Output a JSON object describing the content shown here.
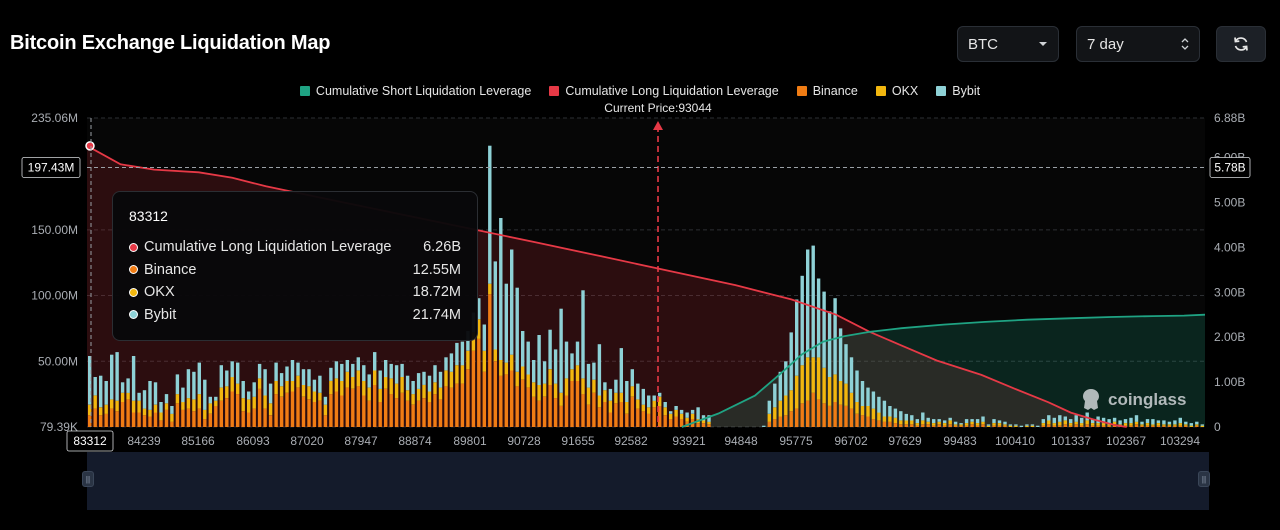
{
  "title": "Bitcoin Exchange Liquidation Map",
  "controls": {
    "coin": "BTC",
    "range": "7 day"
  },
  "legend": [
    {
      "label": "Cumulative Short Liquidation Leverage",
      "color": "#1fa383"
    },
    {
      "label": "Cumulative Long Liquidation Leverage",
      "color": "#e63946"
    },
    {
      "label": "Binance",
      "color": "#f07c14"
    },
    {
      "label": "OKX",
      "color": "#f2b70f"
    },
    {
      "label": "Bybit",
      "color": "#8ed1d6"
    }
  ],
  "current_price_label": "Current Price:93044",
  "tooltip": {
    "price": "83312",
    "rows": [
      {
        "name": "Cumulative Long Liquidation Leverage",
        "value": "6.26B",
        "color": "#e63946"
      },
      {
        "name": "Binance",
        "value": "12.55M",
        "color": "#f07c14"
      },
      {
        "name": "OKX",
        "value": "18.72M",
        "color": "#f2b70f"
      },
      {
        "name": "Bybit",
        "value": "21.74M",
        "color": "#8ed1d6"
      }
    ]
  },
  "watermark": "coinglass",
  "chart_data": {
    "type": "bar",
    "title": "Bitcoin Exchange Liquidation Map",
    "x_labels": [
      "83312",
      "84239",
      "85166",
      "86093",
      "87020",
      "87947",
      "88874",
      "89801",
      "90728",
      "91655",
      "92582",
      "93921",
      "94848",
      "95775",
      "96702",
      "97629",
      "99483",
      "100410",
      "101337",
      "102367",
      "103294"
    ],
    "current_price": 93044,
    "crosshair": {
      "x": "83312",
      "y_label": "197.43M",
      "y2_label": "5.78B",
      "y_value": 197.43
    },
    "y_left": {
      "ticks": [
        "235.06M",
        "150.00M",
        "100.00M",
        "50.00M",
        "79.39K"
      ],
      "tick_values": [
        235.06,
        150,
        100,
        50,
        0.079
      ],
      "max": 235.06
    },
    "y_right": {
      "ticks": [
        "6.88B",
        "6.00B",
        "5.00B",
        "4.00B",
        "3.00B",
        "2.00B",
        "1.00B",
        "0"
      ],
      "tick_values": [
        6.88,
        6,
        5,
        4,
        3,
        2,
        1,
        0
      ],
      "max": 6.88
    },
    "bars": [
      [
        9,
        8,
        37
      ],
      [
        14,
        10,
        14
      ],
      [
        9,
        6,
        24
      ],
      [
        10,
        7,
        18
      ],
      [
        14,
        7,
        34
      ],
      [
        12,
        8,
        37
      ],
      [
        19,
        7,
        8
      ],
      [
        21,
        5,
        11
      ],
      [
        11,
        9,
        34
      ],
      [
        11,
        9,
        6
      ],
      [
        9,
        5,
        14
      ],
      [
        8,
        5,
        22
      ],
      [
        11,
        6,
        17
      ],
      [
        5,
        6,
        8
      ],
      [
        13,
        5,
        7
      ],
      [
        4,
        6,
        6
      ],
      [
        18,
        7,
        15
      ],
      [
        13,
        6,
        11
      ],
      [
        14,
        8,
        22
      ],
      [
        12,
        9,
        21
      ],
      [
        14,
        11,
        24
      ],
      [
        6,
        7,
        23
      ],
      [
        10,
        8,
        5
      ],
      [
        16,
        4,
        3
      ],
      [
        20,
        10,
        17
      ],
      [
        22,
        9,
        12
      ],
      [
        27,
        11,
        12
      ],
      [
        25,
        8,
        16
      ],
      [
        12,
        10,
        13
      ],
      [
        11,
        10,
        6
      ],
      [
        14,
        9,
        11
      ],
      [
        29,
        8,
        11
      ],
      [
        14,
        10,
        20
      ],
      [
        9,
        9,
        15
      ],
      [
        25,
        10,
        14
      ],
      [
        23,
        8,
        10
      ],
      [
        26,
        9,
        11
      ],
      [
        27,
        8,
        16
      ],
      [
        30,
        9,
        10
      ],
      [
        23,
        9,
        12
      ],
      [
        21,
        10,
        13
      ],
      [
        19,
        8,
        9
      ],
      [
        20,
        6,
        13
      ],
      [
        9,
        8,
        6
      ],
      [
        25,
        10,
        10
      ],
      [
        27,
        10,
        13
      ],
      [
        24,
        11,
        13
      ],
      [
        30,
        12,
        9
      ],
      [
        29,
        9,
        10
      ],
      [
        31,
        12,
        10
      ],
      [
        24,
        11,
        12
      ],
      [
        20,
        10,
        10
      ],
      [
        32,
        11,
        14
      ],
      [
        19,
        10,
        14
      ],
      [
        29,
        9,
        13
      ],
      [
        25,
        12,
        11
      ],
      [
        22,
        11,
        14
      ],
      [
        26,
        12,
        10
      ],
      [
        20,
        8,
        11
      ],
      [
        17,
        8,
        10
      ],
      [
        20,
        9,
        12
      ],
      [
        22,
        10,
        10
      ],
      [
        19,
        8,
        12
      ],
      [
        25,
        9,
        13
      ],
      [
        21,
        9,
        12
      ],
      [
        31,
        12,
        10
      ],
      [
        30,
        12,
        14
      ],
      [
        33,
        14,
        17
      ],
      [
        33,
        14,
        18
      ],
      [
        44,
        14,
        15
      ],
      [
        58,
        14,
        15
      ],
      [
        67,
        15,
        16
      ],
      [
        42,
        16,
        20
      ],
      [
        101,
        8,
        105
      ],
      [
        50,
        9,
        67
      ],
      [
        39,
        12,
        108
      ],
      [
        40,
        9,
        60
      ],
      [
        43,
        12,
        80
      ],
      [
        31,
        11,
        64
      ],
      [
        36,
        10,
        27
      ],
      [
        30,
        10,
        25
      ],
      [
        23,
        11,
        17
      ],
      [
        20,
        12,
        38
      ],
      [
        23,
        10,
        17
      ],
      [
        32,
        12,
        30
      ],
      [
        22,
        11,
        26
      ],
      [
        16,
        10,
        64
      ],
      [
        24,
        13,
        28
      ],
      [
        35,
        9,
        12
      ],
      [
        35,
        12,
        18
      ],
      [
        25,
        12,
        67
      ],
      [
        17,
        13,
        18
      ],
      [
        26,
        10,
        13
      ],
      [
        15,
        9,
        39
      ],
      [
        19,
        9,
        6
      ],
      [
        11,
        9,
        9
      ],
      [
        18,
        8,
        10
      ],
      [
        19,
        7,
        34
      ],
      [
        10,
        9,
        16
      ],
      [
        23,
        8,
        13
      ],
      [
        14,
        7,
        12
      ],
      [
        12,
        5,
        12
      ],
      [
        10,
        5,
        9
      ],
      [
        15,
        5,
        4
      ],
      [
        16,
        7,
        3
      ],
      [
        9,
        6,
        4
      ],
      [
        6,
        4,
        2
      ],
      [
        8,
        5,
        3
      ],
      [
        6,
        4,
        3
      ],
      [
        4,
        3,
        4
      ],
      [
        6,
        4,
        3
      ],
      [
        3,
        3,
        9
      ],
      [
        3,
        2,
        4
      ],
      [
        2,
        2,
        5
      ],
      [
        0,
        0,
        0
      ],
      [
        0,
        0,
        0
      ],
      [
        0,
        0,
        0
      ],
      [
        0,
        0,
        0
      ],
      [
        0,
        0,
        0
      ],
      [
        0,
        0,
        0
      ],
      [
        0,
        0,
        0
      ],
      [
        0,
        0,
        0
      ],
      [
        0,
        0,
        0
      ],
      [
        0,
        0,
        1
      ],
      [
        4,
        6,
        10
      ],
      [
        6,
        9,
        18
      ],
      [
        8,
        12,
        22
      ],
      [
        9,
        15,
        26
      ],
      [
        12,
        16,
        44
      ],
      [
        14,
        25,
        58
      ],
      [
        18,
        29,
        68
      ],
      [
        20,
        33,
        82
      ],
      [
        26,
        27,
        85
      ],
      [
        21,
        32,
        60
      ],
      [
        18,
        27,
        58
      ],
      [
        16,
        22,
        50
      ],
      [
        19,
        21,
        58
      ],
      [
        17,
        18,
        40
      ],
      [
        16,
        17,
        30
      ],
      [
        14,
        12,
        27
      ],
      [
        10,
        9,
        24
      ],
      [
        9,
        7,
        19
      ],
      [
        8,
        8,
        14
      ],
      [
        6,
        8,
        13
      ],
      [
        5,
        6,
        12
      ],
      [
        4,
        4,
        12
      ],
      [
        4,
        4,
        8
      ],
      [
        3,
        4,
        7
      ],
      [
        2,
        3,
        7
      ],
      [
        2,
        3,
        5
      ],
      [
        2,
        3,
        4
      ],
      [
        1,
        2,
        3
      ],
      [
        2,
        3,
        6
      ],
      [
        2,
        2,
        3
      ],
      [
        1,
        2,
        3
      ],
      [
        2,
        2,
        2
      ],
      [
        1,
        2,
        2
      ],
      [
        2,
        3,
        2
      ],
      [
        1,
        1,
        2
      ],
      [
        1,
        1,
        1
      ],
      [
        1,
        2,
        3
      ],
      [
        2,
        2,
        2
      ],
      [
        1,
        2,
        3
      ],
      [
        2,
        2,
        4
      ],
      [
        0,
        1,
        1
      ],
      [
        1,
        2,
        3
      ],
      [
        1,
        2,
        2
      ],
      [
        1,
        1,
        2
      ],
      [
        0,
        1,
        1
      ],
      [
        0,
        1,
        1
      ],
      [
        0,
        0,
        1
      ],
      [
        0,
        1,
        1
      ],
      [
        0,
        1,
        1
      ],
      [
        0,
        0,
        1
      ],
      [
        1,
        2,
        3
      ],
      [
        2,
        3,
        4
      ],
      [
        1,
        2,
        4
      ],
      [
        1,
        3,
        5
      ],
      [
        2,
        3,
        3
      ],
      [
        1,
        2,
        3
      ],
      [
        2,
        2,
        5
      ],
      [
        1,
        2,
        4
      ],
      [
        2,
        3,
        6
      ],
      [
        1,
        2,
        3
      ],
      [
        1,
        2,
        5
      ],
      [
        1,
        2,
        4
      ],
      [
        1,
        1,
        4
      ],
      [
        2,
        2,
        3
      ],
      [
        1,
        1,
        3
      ],
      [
        1,
        2,
        3
      ],
      [
        1,
        2,
        4
      ],
      [
        2,
        2,
        5
      ],
      [
        1,
        1,
        2
      ],
      [
        1,
        2,
        3
      ],
      [
        1,
        1,
        4
      ],
      [
        1,
        2,
        2
      ],
      [
        1,
        1,
        3
      ],
      [
        1,
        1,
        2
      ],
      [
        1,
        1,
        3
      ],
      [
        1,
        2,
        4
      ],
      [
        1,
        1,
        2
      ],
      [
        0,
        1,
        2
      ],
      [
        1,
        1,
        2
      ],
      [
        0,
        1,
        1
      ]
    ],
    "long_cumulative_B": [
      [
        0.0,
        6.26
      ],
      [
        0.03,
        5.85
      ],
      [
        0.06,
        5.73
      ],
      [
        0.1,
        5.67
      ],
      [
        0.13,
        5.55
      ],
      [
        0.16,
        5.36
      ],
      [
        0.22,
        5.05
      ],
      [
        0.28,
        4.74
      ],
      [
        0.34,
        4.43
      ],
      [
        0.4,
        4.12
      ],
      [
        0.46,
        3.8
      ],
      [
        0.52,
        3.48
      ],
      [
        0.58,
        3.16
      ],
      [
        0.63,
        2.84
      ],
      [
        0.67,
        2.5
      ],
      [
        0.7,
        2.12
      ],
      [
        0.73,
        1.8
      ],
      [
        0.76,
        1.48
      ],
      [
        0.8,
        1.16
      ],
      [
        0.83,
        0.85
      ],
      [
        0.86,
        0.55
      ],
      [
        0.88,
        0.32
      ],
      [
        0.9,
        0.17
      ],
      [
        0.92,
        0.04
      ],
      [
        0.93,
        0.0
      ]
    ],
    "short_cumulative_B": [
      [
        0.0,
        0.0
      ],
      [
        0.07,
        0.3
      ],
      [
        0.14,
        0.7
      ],
      [
        0.19,
        1.2
      ],
      [
        0.23,
        1.62
      ],
      [
        0.27,
        1.9
      ],
      [
        0.31,
        2.02
      ],
      [
        0.36,
        2.12
      ],
      [
        0.42,
        2.2
      ],
      [
        0.5,
        2.28
      ],
      [
        0.58,
        2.34
      ],
      [
        0.66,
        2.39
      ],
      [
        0.74,
        2.42
      ],
      [
        0.82,
        2.45
      ],
      [
        0.9,
        2.47
      ],
      [
        0.96,
        2.48
      ],
      [
        1.0,
        2.5
      ]
    ]
  }
}
